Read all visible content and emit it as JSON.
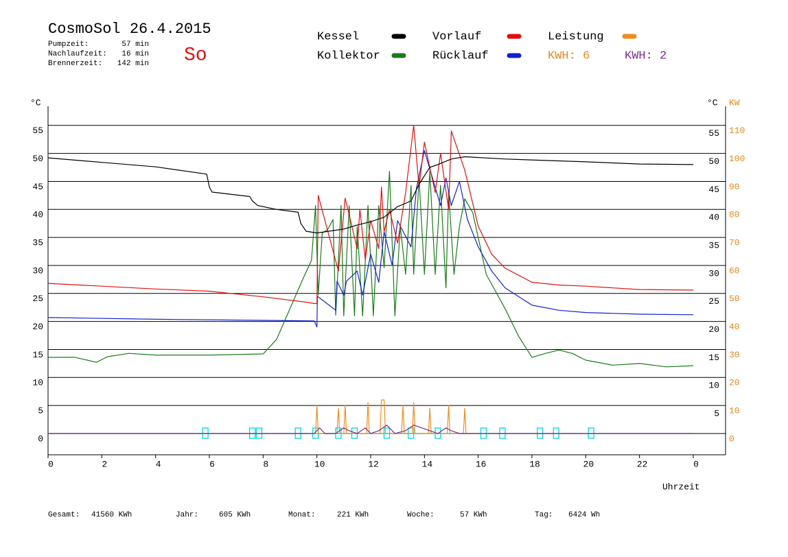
{
  "header": {
    "title": "CosmoSol 26.4.2015",
    "stats": [
      {
        "label": "Pumpzeit:",
        "value": "57 min"
      },
      {
        "label": "Nachlaufzeit:",
        "value": "16 min"
      },
      {
        "label": "Brennerzeit:",
        "value": "142 min"
      }
    ],
    "day": "So",
    "energy": [
      {
        "text": "KWH: 6",
        "color": "#e08a1e"
      },
      {
        "text": "KWH: 2",
        "color": "#7b2d8e"
      }
    ]
  },
  "chart_data": {
    "type": "line",
    "x_label": "Uhrzeit",
    "y_label": "°C",
    "y_right_label": "°C",
    "y2_label": "KW",
    "xlim": [
      0,
      25.2
    ],
    "ylim": [
      -3.8,
      58.4
    ],
    "y2lim": [
      -7.6,
      116.8
    ],
    "xticks": [
      0,
      2,
      4,
      6,
      8,
      10,
      12,
      14,
      16,
      18,
      20,
      22,
      {
        "value": 24,
        "label": "0"
      }
    ],
    "yticks": [
      0,
      5,
      10,
      15,
      20,
      25,
      30,
      35,
      40,
      45,
      50,
      55
    ],
    "y_right_ticks": [
      5,
      10,
      15,
      20,
      25,
      30,
      35,
      40,
      45,
      50,
      55
    ],
    "y2ticks": [
      0,
      10,
      20,
      30,
      40,
      50,
      60,
      70,
      80,
      90,
      100,
      110
    ],
    "grid": true,
    "series": [
      {
        "name": "Kessel",
        "color": "#000000",
        "x": [
          0,
          2,
          4,
          5.9,
          6,
          6.1,
          7.5,
          7.6,
          7.8,
          8.5,
          9.3,
          9.4,
          9.6,
          10,
          11,
          11.5,
          12,
          12.5,
          13,
          13.5,
          13.8,
          14.2,
          14.5,
          15,
          15.5,
          17,
          20,
          22,
          24
        ],
        "values": [
          49.2,
          48.4,
          47.6,
          46.3,
          44,
          43.1,
          42.3,
          41.5,
          40.7,
          40.0,
          39.5,
          37.5,
          36.1,
          35.8,
          36.5,
          37.2,
          37.8,
          38.6,
          40.5,
          41.5,
          44.5,
          47.5,
          48.0,
          49.0,
          49.4,
          49.0,
          48.5,
          48.1,
          48.0
        ]
      },
      {
        "name": "Kollektor",
        "color": "#1a7a1a",
        "x": [
          0,
          1,
          1.8,
          2.2,
          3,
          4,
          6,
          8,
          8.5,
          9,
          9.5,
          9.8,
          9.95,
          10.05,
          10.2,
          10.4,
          10.6,
          10.7,
          10.9,
          11.0,
          11.2,
          11.4,
          11.5,
          11.7,
          11.9,
          12.1,
          12.3,
          12.5,
          12.7,
          12.9,
          13.1,
          13.3,
          13.5,
          13.6,
          13.8,
          14.0,
          14.2,
          14.4,
          14.6,
          14.8,
          14.9,
          15.1,
          15.3,
          15.5,
          15.8,
          16.3,
          17,
          17.5,
          18,
          18.5,
          19,
          19.5,
          20,
          21,
          22,
          23,
          24
        ],
        "values": [
          13.6,
          13.6,
          12.7,
          13.7,
          14.3,
          14.0,
          14.0,
          14.2,
          16.8,
          22.3,
          27.8,
          30.9,
          40.7,
          24.7,
          35.8,
          36.4,
          38.2,
          21.1,
          40.7,
          21.0,
          40.7,
          21.0,
          37.0,
          21.0,
          40.7,
          21.0,
          40.7,
          29.6,
          46.8,
          21.0,
          37.0,
          28.4,
          44.3,
          28.4,
          45.6,
          28.4,
          46.8,
          28.4,
          44.3,
          26.0,
          43.1,
          28.4,
          37.0,
          41.9,
          39.4,
          28.4,
          22.3,
          17.4,
          13.6,
          14.3,
          14.9,
          14.3,
          13.1,
          12.2,
          12.5,
          11.9,
          12.1
        ]
      },
      {
        "name": "Vorlauf",
        "color": "#dd1111",
        "x": [
          0,
          4,
          6,
          8,
          9.5,
          9.9,
          10.0,
          10.05,
          10.8,
          11.05,
          11.5,
          11.6,
          11.8,
          12.0,
          12.3,
          12.4,
          12.5,
          12.7,
          13.0,
          13.3,
          13.6,
          13.8,
          14.0,
          14.4,
          14.6,
          14.9,
          15.0,
          15.5,
          15.6,
          16,
          16.5,
          17,
          18,
          19,
          20,
          22,
          24
        ],
        "values": [
          26.8,
          25.8,
          25.4,
          24.4,
          23.5,
          23.2,
          23.2,
          42.5,
          29.0,
          42.0,
          33,
          40,
          31,
          38,
          33,
          44,
          36,
          40,
          34,
          43,
          55,
          44,
          52,
          43,
          50,
          40,
          54,
          47,
          45,
          37,
          32,
          29.5,
          27,
          26.5,
          26.3,
          25.7,
          25.6
        ]
      },
      {
        "name": "Rücklauf",
        "color": "#1122cc",
        "x": [
          0,
          4,
          8,
          9.9,
          10.0,
          10.02,
          10.7,
          10.75,
          11.0,
          11.1,
          11.5,
          11.7,
          12.0,
          12.3,
          12.5,
          12.8,
          13.0,
          13.5,
          13.7,
          14.0,
          14.3,
          14.6,
          14.8,
          15.0,
          15.3,
          15.6,
          16,
          16.5,
          17,
          18,
          19,
          20,
          22,
          24
        ],
        "values": [
          20.7,
          20.4,
          20.2,
          20.1,
          19.0,
          24.5,
          22.0,
          27.2,
          24.7,
          27.2,
          29,
          24.7,
          32,
          27,
          36,
          30,
          38,
          33.3,
          43.7,
          50.5,
          45.6,
          40.7,
          45.6,
          40.7,
          45,
          38.2,
          33.3,
          29,
          26,
          22.9,
          22,
          21.6,
          21.3,
          21.2
        ]
      },
      {
        "name": "Leistung",
        "color": "#f08c1e",
        "axis": "y2",
        "x": [
          0,
          9.95,
          10.0,
          10.05,
          10.75,
          10.8,
          10.85,
          11.0,
          11.05,
          11.1,
          11.85,
          11.9,
          11.95,
          12.35,
          12.4,
          12.5,
          12.55,
          13.15,
          13.2,
          13.25,
          13.55,
          13.6,
          13.65,
          14.15,
          14.2,
          14.25,
          14.85,
          14.9,
          14.95,
          15.45,
          15.5,
          15.55,
          24
        ],
        "values": [
          0,
          0,
          10,
          0,
          0,
          9,
          0,
          0,
          10,
          0,
          0,
          11,
          0,
          0,
          12,
          12,
          0,
          0,
          10,
          0,
          0,
          11,
          0,
          0,
          9,
          0,
          0,
          10,
          0,
          0,
          9,
          0,
          0
        ]
      },
      {
        "color": "#7b2d8e",
        "axis": "y2",
        "x": [
          0,
          9.9,
          10.1,
          10.3,
          10.7,
          11.0,
          11.2,
          11.5,
          11.8,
          12.0,
          12.3,
          12.6,
          12.9,
          13.3,
          13.6,
          13.9,
          14.2,
          14.5,
          14.8,
          15.0,
          15.3,
          15.6,
          24
        ],
        "values": [
          0,
          0,
          2,
          0,
          0,
          2,
          1,
          0,
          2,
          0,
          1,
          3,
          0,
          1,
          3,
          2,
          1,
          0,
          2,
          1,
          0,
          0,
          0
        ]
      }
    ],
    "events": {
      "color": "#00d8e0",
      "x": [
        5.85,
        7.6,
        7.85,
        9.3,
        9.95,
        10.8,
        11.4,
        12.6,
        13.5,
        14.5,
        16.2,
        16.9,
        18.3,
        18.9,
        20.2
      ]
    }
  },
  "footer": [
    {
      "label": "Gesamt:",
      "value": "41560 KWh"
    },
    {
      "label": "Jahr:",
      "value": "605 KWh"
    },
    {
      "label": "Monat:",
      "value": "221 KWh"
    },
    {
      "label": "Woche:",
      "value": "57 KWh"
    },
    {
      "label": "Tag:",
      "value": "6424 Wh"
    }
  ]
}
